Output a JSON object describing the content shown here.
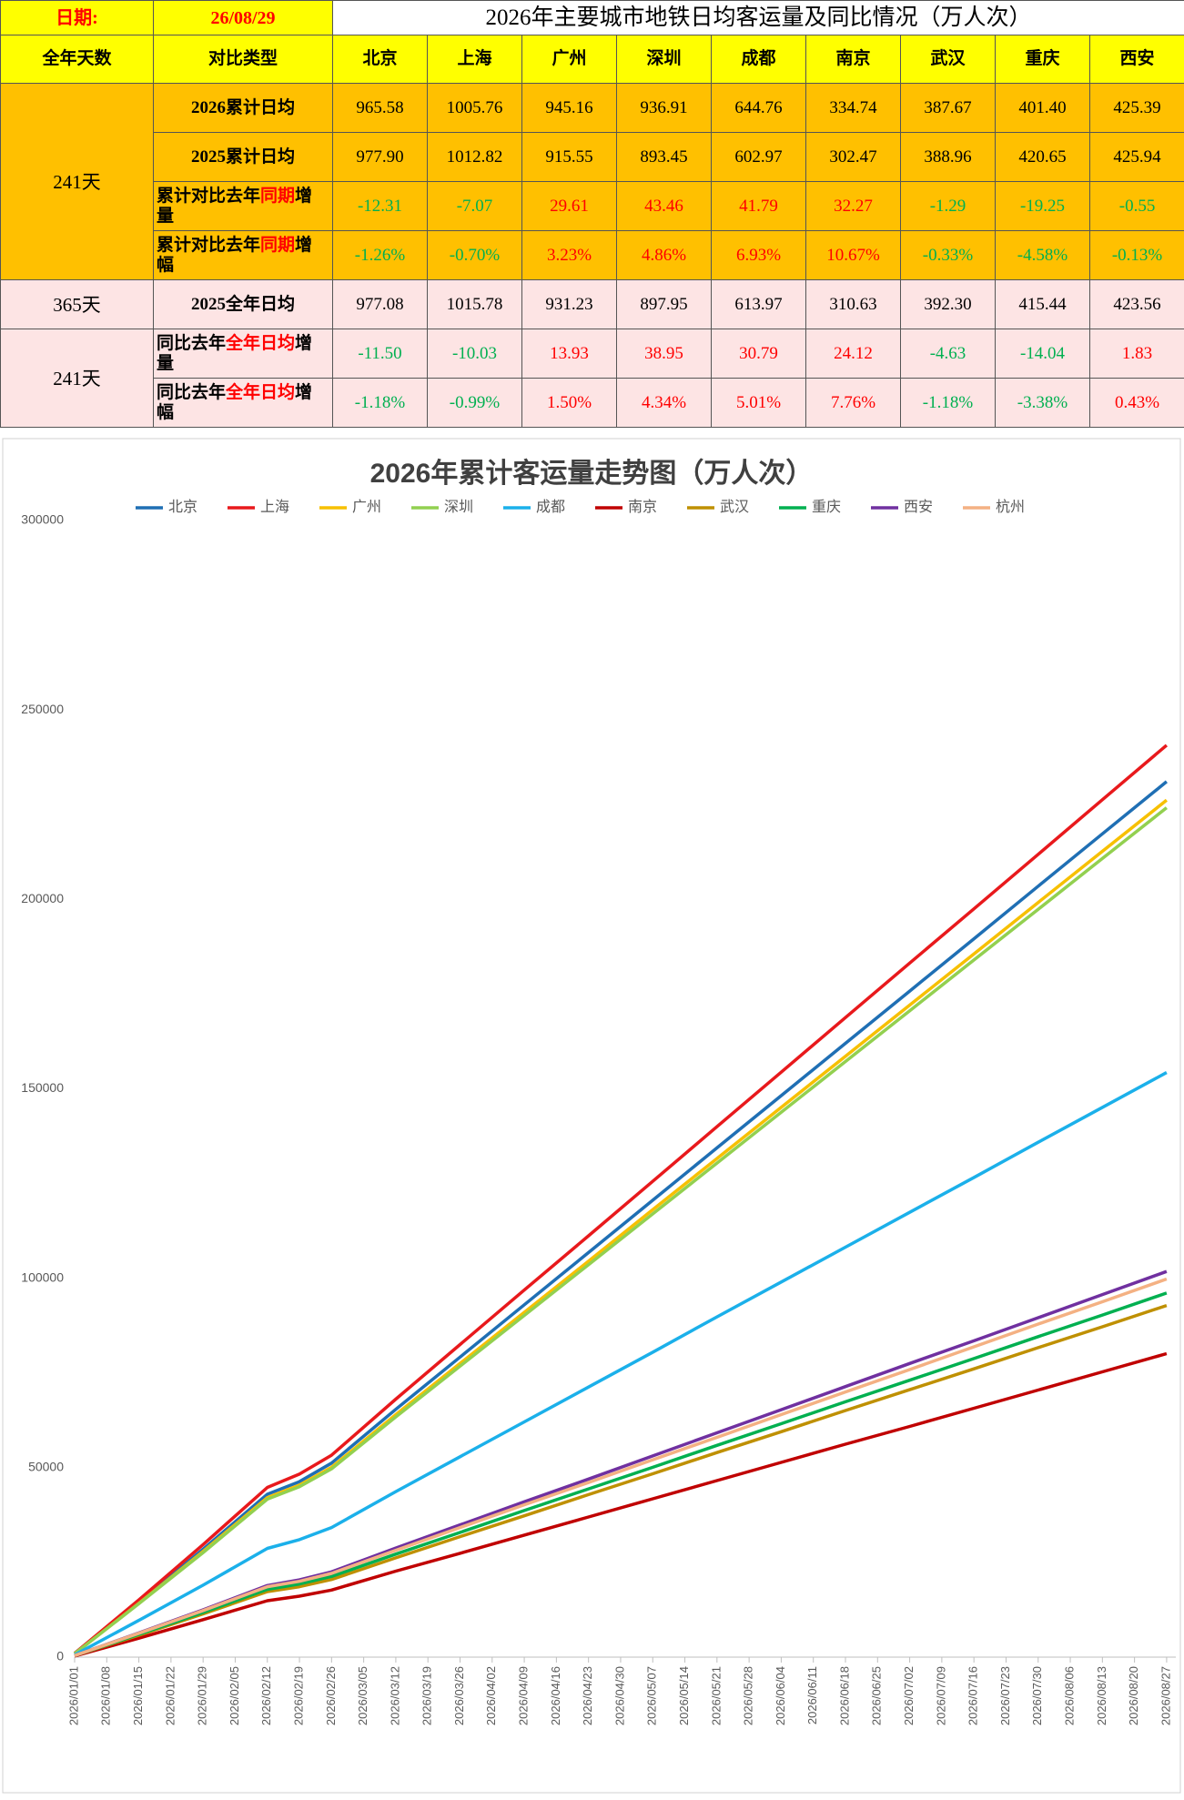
{
  "header": {
    "date_label": "日期:",
    "date": "26/08/29",
    "title": "2026年主要城市地铁日均客运量及同比情况（万人次）"
  },
  "table": {
    "columns": [
      "全年天数",
      "对比类型",
      "北京",
      "上海",
      "广州",
      "深圳",
      "成都",
      "南京",
      "武汉",
      "重庆",
      "西安"
    ],
    "groups": [
      {
        "days": "241天",
        "fill": "#ffc000",
        "rows": [
          {
            "label": [
              "2026累计日均"
            ],
            "values": [
              "965.58",
              "1005.76",
              "945.16",
              "936.91",
              "644.76",
              "334.74",
              "387.67",
              "401.40",
              "425.39"
            ]
          },
          {
            "label": [
              "2025累计日均"
            ],
            "values": [
              "977.90",
              "1012.82",
              "915.55",
              "893.45",
              "602.97",
              "302.47",
              "388.96",
              "420.65",
              "425.94"
            ]
          },
          {
            "label": [
              "累计对比去年",
              "同期",
              "增量"
            ],
            "signed": true,
            "values": [
              "-12.31",
              "-7.07",
              "29.61",
              "43.46",
              "41.79",
              "32.27",
              "-1.29",
              "-19.25",
              "-0.55"
            ]
          },
          {
            "label": [
              "累计对比去年",
              "同期",
              "增幅"
            ],
            "signed": true,
            "values": [
              "-1.26%",
              "-0.70%",
              "3.23%",
              "4.86%",
              "6.93%",
              "10.67%",
              "-0.33%",
              "-4.58%",
              "-0.13%"
            ]
          }
        ]
      },
      {
        "days": "365天",
        "fill": "#fde4e4",
        "rows": [
          {
            "label": [
              "2025全年日均"
            ],
            "values": [
              "977.08",
              "1015.78",
              "931.23",
              "897.95",
              "613.97",
              "310.63",
              "392.30",
              "415.44",
              "423.56"
            ]
          }
        ]
      },
      {
        "days": "241天",
        "fill": "#fde4e4",
        "rows": [
          {
            "label": [
              "同比去年",
              "全年日均",
              "增量"
            ],
            "signed": true,
            "values": [
              "-11.50",
              "-10.03",
              "13.93",
              "38.95",
              "30.79",
              "24.12",
              "-4.63",
              "-14.04",
              "1.83"
            ]
          },
          {
            "label": [
              "同比去年",
              "全年日均",
              "增幅"
            ],
            "signed": true,
            "values": [
              "-1.18%",
              "-0.99%",
              "1.50%",
              "4.34%",
              "5.01%",
              "7.76%",
              "-1.18%",
              "-3.38%",
              "0.43%"
            ]
          }
        ]
      }
    ]
  },
  "chart_data": {
    "type": "line",
    "title": "2026年累计客运量走势图（万人次）",
    "x": [
      "2026/01/01",
      "2026/01/15",
      "2026/01/29",
      "2026/02/12",
      "2026/02/19",
      "2026/02/26",
      "2026/03/12",
      "2026/03/26",
      "2026/04/09",
      "2026/04/23",
      "2026/05/07",
      "2026/05/21",
      "2026/06/04",
      "2026/06/18",
      "2026/07/02",
      "2026/07/16",
      "2026/07/30",
      "2026/08/13",
      "2026/08/27"
    ],
    "xlim": [
      "2026/01/01",
      "2026/08/29"
    ],
    "xticks": [
      "2026/01/01",
      "2026/01/08",
      "2026/01/15",
      "2026/01/22",
      "2026/01/29",
      "2026/02/05",
      "2026/02/12",
      "2026/02/19",
      "2026/02/26",
      "2026/03/05",
      "2026/03/12",
      "2026/03/19",
      "2026/03/26",
      "2026/04/02",
      "2026/04/09",
      "2026/04/16",
      "2026/04/23",
      "2026/04/30",
      "2026/05/07",
      "2026/05/14",
      "2026/05/21",
      "2026/05/28",
      "2026/06/04",
      "2026/06/11",
      "2026/06/18",
      "2026/06/25",
      "2026/07/02",
      "2026/07/09",
      "2026/07/16",
      "2026/07/23",
      "2026/07/30",
      "2026/08/06",
      "2026/08/13",
      "2026/08/20",
      "2026/08/27"
    ],
    "ylim": [
      0,
      300000
    ],
    "yticks": [
      0,
      50000,
      100000,
      150000,
      200000,
      250000,
      300000
    ],
    "grid": false,
    "series": [
      {
        "name": "北京",
        "color": "#1f6fb4",
        "values": [
          1000,
          14500,
          28500,
          43000,
          46300,
          51200,
          65400,
          79200,
          93000,
          106800,
          120600,
          134400,
          148200,
          162000,
          175800,
          189600,
          203500,
          217300,
          231100
        ]
      },
      {
        "name": "上海",
        "color": "#e8191c",
        "values": [
          1000,
          15100,
          29700,
          44800,
          48300,
          53300,
          68100,
          82500,
          96900,
          111200,
          125600,
          140000,
          154400,
          168800,
          183200,
          197500,
          211900,
          226300,
          240700
        ]
      },
      {
        "name": "广州",
        "color": "#f7c000",
        "values": [
          900,
          14200,
          27900,
          42100,
          45400,
          50100,
          64000,
          77500,
          91000,
          104500,
          118100,
          131600,
          145100,
          158600,
          172100,
          185600,
          199200,
          212700,
          226200
        ]
      },
      {
        "name": "深圳",
        "color": "#92d050",
        "values": [
          900,
          14100,
          27600,
          41700,
          45000,
          49700,
          63400,
          76800,
          90200,
          103600,
          117000,
          130400,
          143800,
          157200,
          170600,
          184000,
          197400,
          210800,
          224200
        ]
      },
      {
        "name": "成都",
        "color": "#1bb0ea",
        "values": [
          600,
          9700,
          19000,
          28700,
          31000,
          34200,
          43700,
          52900,
          62100,
          71300,
          80500,
          89800,
          99000,
          108200,
          117400,
          126600,
          135900,
          145100,
          154300
        ]
      },
      {
        "name": "南京",
        "color": "#c00000",
        "values": [
          300,
          5000,
          9900,
          14900,
          16100,
          17700,
          22700,
          27400,
          32200,
          37000,
          41800,
          46600,
          51400,
          56200,
          60900,
          65700,
          70500,
          75300,
          80100
        ]
      },
      {
        "name": "武汉",
        "color": "#bf9000",
        "values": [
          400,
          5800,
          11400,
          17300,
          18600,
          20500,
          26200,
          31800,
          37300,
          42900,
          48400,
          54000,
          59500,
          65100,
          70600,
          76100,
          81700,
          87200,
          92800
        ]
      },
      {
        "name": "重庆",
        "color": "#00b050",
        "values": [
          400,
          6000,
          11800,
          17900,
          19300,
          21300,
          27200,
          32900,
          38700,
          44400,
          50100,
          55900,
          61600,
          67400,
          73100,
          78800,
          84600,
          90300,
          96100
        ]
      },
      {
        "name": "西安",
        "color": "#7030a0",
        "values": [
          400,
          6400,
          12500,
          18900,
          20400,
          22500,
          28800,
          34900,
          41000,
          47000,
          53100,
          59200,
          65300,
          71400,
          77500,
          83500,
          89600,
          95700,
          101800
        ]
      },
      {
        "name": "杭州",
        "color": "#f4b183",
        "values": [
          400,
          6300,
          12300,
          18600,
          20000,
          22100,
          28200,
          34200,
          40200,
          46100,
          52100,
          58000,
          64000,
          70000,
          75900,
          81900,
          87900,
          93800,
          99800
        ]
      }
    ]
  }
}
